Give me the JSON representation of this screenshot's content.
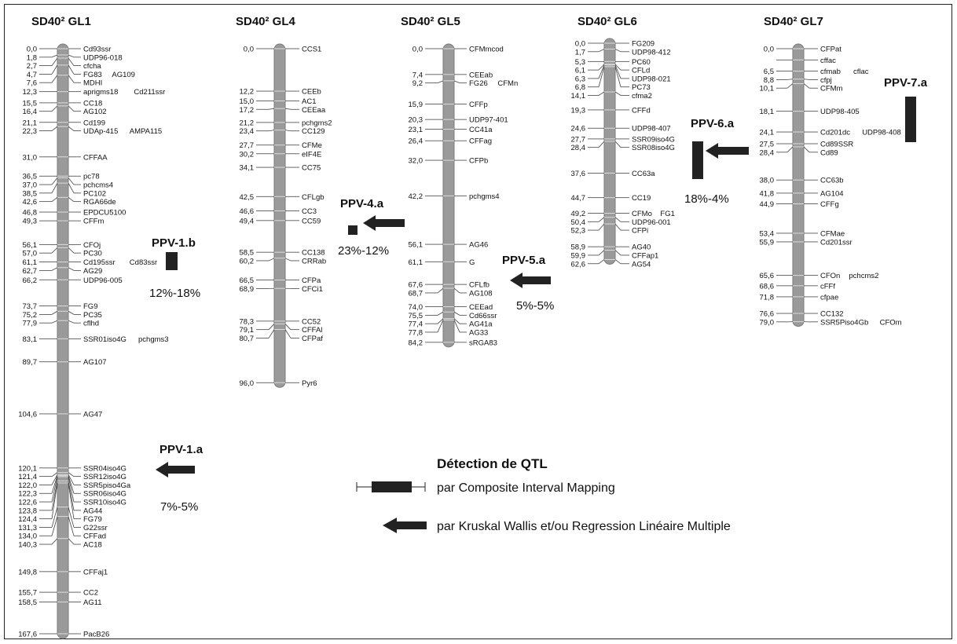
{
  "legend": {
    "title": "Détection de QTL",
    "cim_label": "par Composite Interval Mapping",
    "kw_label": "par Kruskal Wallis et/ou Regression Linéaire Multiple"
  },
  "linkage_groups": [
    {
      "title": "SD40² GL1",
      "length_cm": 167.6,
      "markers": [
        {
          "pos": "0,0",
          "names": [
            "Cd93ssr"
          ]
        },
        {
          "pos": "1,8",
          "names": [
            "UDP96-018"
          ]
        },
        {
          "pos": "2,7",
          "names": [
            "cfcha"
          ]
        },
        {
          "pos": "4,7",
          "names": [
            "FG83",
            "AG109"
          ]
        },
        {
          "pos": "7,6",
          "names": [
            "MDHI"
          ]
        },
        {
          "pos": "12,3",
          "names": [
            "aprigms18",
            "Cd211ssr"
          ]
        },
        {
          "pos": "15,5",
          "names": [
            "CC18"
          ]
        },
        {
          "pos": "16,4",
          "names": [
            "AG102"
          ]
        },
        {
          "pos": "21,1",
          "names": [
            "Cd199"
          ]
        },
        {
          "pos": "22,3",
          "names": [
            "UDAp-415",
            "AMPA115"
          ]
        },
        {
          "pos": "31,0",
          "names": [
            "CFFAA"
          ]
        },
        {
          "pos": "36,5",
          "names": [
            "pc78"
          ]
        },
        {
          "pos": "37,0",
          "names": [
            "pchcms4"
          ]
        },
        {
          "pos": "38,5",
          "names": [
            "PC102"
          ]
        },
        {
          "pos": "42,6",
          "names": [
            "RGA66de"
          ]
        },
        {
          "pos": "46,8",
          "names": [
            "EPDCU5100"
          ]
        },
        {
          "pos": "49,3",
          "names": [
            "CFFm"
          ]
        },
        {
          "pos": "56,1",
          "names": [
            "CFOj"
          ]
        },
        {
          "pos": "57,0",
          "names": [
            "PC30"
          ]
        },
        {
          "pos": "61,1",
          "names": [
            "Cd195ssr",
            "Cd83ssr"
          ]
        },
        {
          "pos": "62,7",
          "names": [
            "AG29"
          ]
        },
        {
          "pos": "66,2",
          "names": [
            "UDP96-005"
          ]
        },
        {
          "pos": "73,7",
          "names": [
            "FG9"
          ]
        },
        {
          "pos": "75,2",
          "names": [
            "PC35"
          ]
        },
        {
          "pos": "77,9",
          "names": [
            "cflhd"
          ]
        },
        {
          "pos": "83,1",
          "names": [
            "SSR01iso4G",
            "pchgms3"
          ]
        },
        {
          "pos": "89,7",
          "names": [
            "AG107"
          ]
        },
        {
          "pos": "104,6",
          "names": [
            "AG47"
          ]
        },
        {
          "pos": "120,1",
          "names": [
            "SSR04iso4G"
          ]
        },
        {
          "pos": "121,4",
          "names": [
            "SSR12iso4G"
          ]
        },
        {
          "pos": "122,0",
          "names": [
            "SSR5pisо4Ga"
          ]
        },
        {
          "pos": "122,3",
          "names": [
            "SSR06iso4G"
          ]
        },
        {
          "pos": "122,6",
          "names": [
            "SSR10iso4G"
          ]
        },
        {
          "pos": "123,8",
          "names": [
            "AG44"
          ]
        },
        {
          "pos": "124,4",
          "names": [
            "FG79"
          ]
        },
        {
          "pos": "131,3",
          "names": [
            "G22ssr"
          ]
        },
        {
          "pos": "134,0",
          "names": [
            "CFFad"
          ]
        },
        {
          "pos": "140,3",
          "names": [
            "AC18"
          ]
        },
        {
          "pos": "149,8",
          "names": [
            "CFFaj1"
          ]
        },
        {
          "pos": "155,7",
          "names": [
            "CC2"
          ]
        },
        {
          "pos": "158,5",
          "names": [
            "AG11"
          ]
        },
        {
          "pos": "167,6",
          "names": [
            "PacB26"
          ]
        }
      ]
    },
    {
      "title": "SD40² GL4",
      "length_cm": 96.0,
      "markers": [
        {
          "pos": "0,0",
          "names": [
            "CCS1"
          ]
        },
        {
          "pos": "12,2",
          "names": [
            "CEEb"
          ]
        },
        {
          "pos": "15,0",
          "names": [
            "AC1"
          ]
        },
        {
          "pos": "17,2",
          "names": [
            "CEEaa"
          ]
        },
        {
          "pos": "21,2",
          "names": [
            "pchgms2"
          ]
        },
        {
          "pos": "23,4",
          "names": [
            "CC129"
          ]
        },
        {
          "pos": "27,7",
          "names": [
            "CFMe"
          ]
        },
        {
          "pos": "30,2",
          "names": [
            "eIF4E"
          ]
        },
        {
          "pos": "34,1",
          "names": [
            "CC75"
          ]
        },
        {
          "pos": "42,5",
          "names": [
            "CFLgb"
          ]
        },
        {
          "pos": "46,6",
          "names": [
            "CC3"
          ]
        },
        {
          "pos": "49,4",
          "names": [
            "CC59"
          ]
        },
        {
          "pos": "58,5",
          "names": [
            "CC138"
          ]
        },
        {
          "pos": "60,2",
          "names": [
            "CRRab"
          ]
        },
        {
          "pos": "66,5",
          "names": [
            "CFPa"
          ]
        },
        {
          "pos": "68,9",
          "names": [
            "CFCi1"
          ]
        },
        {
          "pos": "78,3",
          "names": [
            "CC52"
          ]
        },
        {
          "pos": "79,1",
          "names": [
            "CFFAl"
          ]
        },
        {
          "pos": "80,7",
          "names": [
            "CFPaf"
          ]
        },
        {
          "pos": "96,0",
          "names": [
            "Pyr6"
          ]
        }
      ]
    },
    {
      "title": "SD40² GL5",
      "length_cm": 84.2,
      "markers": [
        {
          "pos": "0,0",
          "names": [
            "CFMmcod"
          ]
        },
        {
          "pos": "7,4",
          "names": [
            "CEEab"
          ]
        },
        {
          "pos": "9,2",
          "names": [
            "FG26",
            "CFMn"
          ]
        },
        {
          "pos": "15,9",
          "names": [
            "CFFp"
          ]
        },
        {
          "pos": "20,3",
          "names": [
            "UDP97-401"
          ]
        },
        {
          "pos": "23,1",
          "names": [
            "CC41a"
          ]
        },
        {
          "pos": "26,4",
          "names": [
            "CFFag"
          ]
        },
        {
          "pos": "32,0",
          "names": [
            "CFPb"
          ]
        },
        {
          "pos": "42,2",
          "names": [
            "pchgms4"
          ]
        },
        {
          "pos": "56,1",
          "names": [
            "AG46"
          ]
        },
        {
          "pos": "61,1",
          "names": [
            "G"
          ]
        },
        {
          "pos": "67,6",
          "names": [
            "CFLfb"
          ]
        },
        {
          "pos": "68,7",
          "names": [
            "AG108"
          ]
        },
        {
          "pos": "74,0",
          "names": [
            "CEEad"
          ]
        },
        {
          "pos": "75,5",
          "names": [
            "Cd66ssr"
          ]
        },
        {
          "pos": "77,4",
          "names": [
            "AG41a"
          ]
        },
        {
          "pos": "77,8",
          "names": [
            "AG33"
          ]
        },
        {
          "pos": "84,2",
          "names": [
            "sRGA83"
          ]
        }
      ]
    },
    {
      "title": "SD40² GL6",
      "length_cm": 62.6,
      "markers": [
        {
          "pos": "0,0",
          "names": [
            "FG209"
          ]
        },
        {
          "pos": "1,7",
          "names": [
            "UDP98-412"
          ]
        },
        {
          "pos": "5,3",
          "names": [
            "PC60"
          ]
        },
        {
          "pos": "6,1",
          "names": [
            "CFLd"
          ]
        },
        {
          "pos": "6,3",
          "names": [
            "UDP98-021"
          ]
        },
        {
          "pos": "6,8",
          "names": [
            "PC73"
          ]
        },
        {
          "pos": "14,1",
          "names": [
            "cfma2"
          ]
        },
        {
          "pos": "19,3",
          "names": [
            "CFFd"
          ]
        },
        {
          "pos": "24,6",
          "names": [
            "UDP98-407"
          ]
        },
        {
          "pos": "27,7",
          "names": [
            "SSR09iso4G"
          ]
        },
        {
          "pos": "28,4",
          "names": [
            "SSR08iso4G"
          ]
        },
        {
          "pos": "37,6",
          "names": [
            "CC63a"
          ]
        },
        {
          "pos": "44,7",
          "names": [
            "CC19"
          ]
        },
        {
          "pos": "49,2",
          "names": [
            "CFMo",
            "FG1"
          ]
        },
        {
          "pos": "50,4",
          "names": [
            "UDP96-001"
          ]
        },
        {
          "pos": "52,3",
          "names": [
            "CFPi"
          ]
        },
        {
          "pos": "58,9",
          "names": [
            "AG40"
          ]
        },
        {
          "pos": "59,9",
          "names": [
            "CFFap1"
          ]
        },
        {
          "pos": "62,6",
          "names": [
            "AG54"
          ]
        }
      ]
    },
    {
      "title": "SD40² GL7",
      "length_cm": 79.0,
      "markers": [
        {
          "pos": "0,0",
          "names": [
            "CFPat"
          ]
        },
        {
          "pos": "",
          "names": [
            "cffac"
          ]
        },
        {
          "pos": "6,5",
          "names": [
            "cfmab",
            "cflac"
          ]
        },
        {
          "pos": "8,8",
          "names": [
            "cfpj"
          ]
        },
        {
          "pos": "10,1",
          "names": [
            "CFMm"
          ]
        },
        {
          "pos": "18,1",
          "names": [
            "UDP98-405"
          ]
        },
        {
          "pos": "24,1",
          "names": [
            "Cd201dc",
            "UDP98-408"
          ]
        },
        {
          "pos": "27,5",
          "names": [
            "Cd89SSR"
          ]
        },
        {
          "pos": "28,4",
          "names": [
            "Cd89"
          ]
        },
        {
          "pos": "38,0",
          "names": [
            "CC63b"
          ]
        },
        {
          "pos": "41,8",
          "names": [
            "AG104"
          ]
        },
        {
          "pos": "44,9",
          "names": [
            "CFFg"
          ]
        },
        {
          "pos": "53,4",
          "names": [
            "CFMae"
          ]
        },
        {
          "pos": "55,9",
          "names": [
            "Cd201ssr"
          ]
        },
        {
          "pos": "65,6",
          "names": [
            "CFOn",
            "pchcms2"
          ]
        },
        {
          "pos": "68,6",
          "names": [
            "cFFf"
          ]
        },
        {
          "pos": "71,8",
          "names": [
            "cfpae"
          ]
        },
        {
          "pos": "76,6",
          "names": [
            "CC132"
          ]
        },
        {
          "pos": "79,0",
          "names": [
            "SSR5Piso4Gb",
            "CFOm"
          ]
        }
      ]
    }
  ],
  "qtls": [
    {
      "name": "PPV-1.b",
      "range": "12%-18%",
      "method": "cim"
    },
    {
      "name": "PPV-1.a",
      "range": "7%-5%",
      "method": "kw"
    },
    {
      "name": "PPV-4.a",
      "range": "23%-12%",
      "method": "kw"
    },
    {
      "name": "PPV-5.a",
      "range": "5%-5%",
      "method": "kw"
    },
    {
      "name": "PPV-6.a",
      "range": "18%-4%",
      "method": "kw"
    },
    {
      "name": "PPV-7.a",
      "range": "",
      "method": "cim"
    }
  ]
}
